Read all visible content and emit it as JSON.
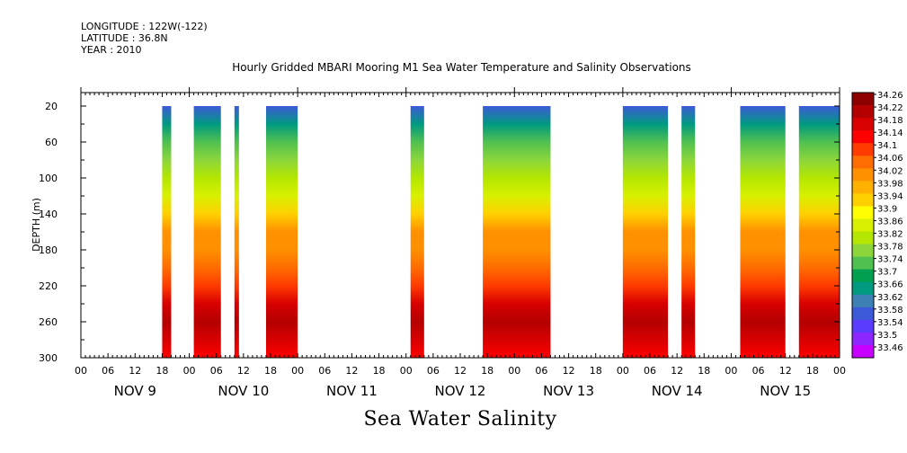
{
  "header": {
    "longitude": "LONGITUDE : 122W(-122)",
    "latitude": "LATITUDE : 36.8N",
    "year": "YEAR : 2010"
  },
  "title": "Hourly Gridded MBARI Mooring M1 Sea Water Temperature and Salinity Observations",
  "bottom_label": "Sea Water Salinity",
  "chart_data": {
    "type": "heatmap",
    "title": "Hourly Gridded MBARI Mooring M1 Sea Water Temperature and Salinity Observations",
    "variable": "Sea Water Salinity",
    "ylabel": "DEPTH (m)",
    "y_ticks": [
      20,
      60,
      100,
      140,
      180,
      220,
      260,
      300
    ],
    "y_range": [
      300,
      5
    ],
    "x_range_hours": [
      0,
      168
    ],
    "x_tick_labels": [
      "00",
      "06",
      "12",
      "18",
      "00",
      "06",
      "12",
      "18",
      "00",
      "06",
      "12",
      "18",
      "00",
      "06",
      "12",
      "18",
      "00",
      "06",
      "12",
      "18",
      "00",
      "06",
      "12",
      "18",
      "00",
      "06",
      "12",
      "18",
      "00"
    ],
    "day_labels": [
      "NOV  9",
      "NOV 10",
      "NOV 11",
      "NOV 12",
      "NOV 13",
      "NOV 14",
      "NOV 15"
    ],
    "colorbar_levels": [
      "34.26",
      "34.22",
      "34.18",
      "34.14",
      "34.1",
      "34.06",
      "34.02",
      "33.98",
      "33.94",
      "33.9",
      "33.86",
      "33.82",
      "33.78",
      "33.74",
      "33.7",
      "33.66",
      "33.62",
      "33.58",
      "33.54",
      "33.5",
      "33.46"
    ],
    "colorbar_colors": [
      "#8e0000",
      "#b40000",
      "#d80000",
      "#ff0000",
      "#ff3b00",
      "#ff6c00",
      "#ff9000",
      "#ffb000",
      "#ffd000",
      "#ffff00",
      "#d8f000",
      "#b4e600",
      "#8cd63c",
      "#50c050",
      "#00a050",
      "#009a80",
      "#3c80b4",
      "#3c5ad8",
      "#5a3cff",
      "#8c28ff",
      "#c800ff"
    ],
    "observation_windows": [
      {
        "start": "NOV 9 18:00",
        "end": "NOV 9 20:00"
      },
      {
        "start": "NOV 10 01:00",
        "end": "NOV 10 07:00"
      },
      {
        "start": "NOV 10 10:00",
        "end": "NOV 10 11:00"
      },
      {
        "start": "NOV 10 17:00",
        "end": "NOV 11 00:00"
      },
      {
        "start": "NOV 12 01:00",
        "end": "NOV 12 04:00"
      },
      {
        "start": "NOV 12 17:00",
        "end": "NOV 13 08:00"
      },
      {
        "start": "NOV 14 00:00",
        "end": "NOV 14 10:00"
      },
      {
        "start": "NOV 14 13:00",
        "end": "NOV 14 16:00"
      },
      {
        "start": "NOV 15 02:00",
        "end": "NOV 15 12:00"
      },
      {
        "start": "NOV 15 15:00",
        "end": "NOV 16 00:00"
      }
    ],
    "salinity_profile": [
      {
        "depth": 20,
        "salinity": 33.6
      },
      {
        "depth": 40,
        "salinity": 33.66
      },
      {
        "depth": 60,
        "salinity": 33.74
      },
      {
        "depth": 80,
        "salinity": 33.8
      },
      {
        "depth": 100,
        "salinity": 33.84
      },
      {
        "depth": 120,
        "salinity": 33.88
      },
      {
        "depth": 140,
        "salinity": 33.96
      },
      {
        "depth": 160,
        "salinity": 34.02
      },
      {
        "depth": 180,
        "salinity": 34.04
      },
      {
        "depth": 200,
        "salinity": 34.06
      },
      {
        "depth": 220,
        "salinity": 34.12
      },
      {
        "depth": 240,
        "salinity": 34.2
      },
      {
        "depth": 260,
        "salinity": 34.24
      },
      {
        "depth": 280,
        "salinity": 34.2
      },
      {
        "depth": 300,
        "salinity": 34.16
      }
    ]
  }
}
